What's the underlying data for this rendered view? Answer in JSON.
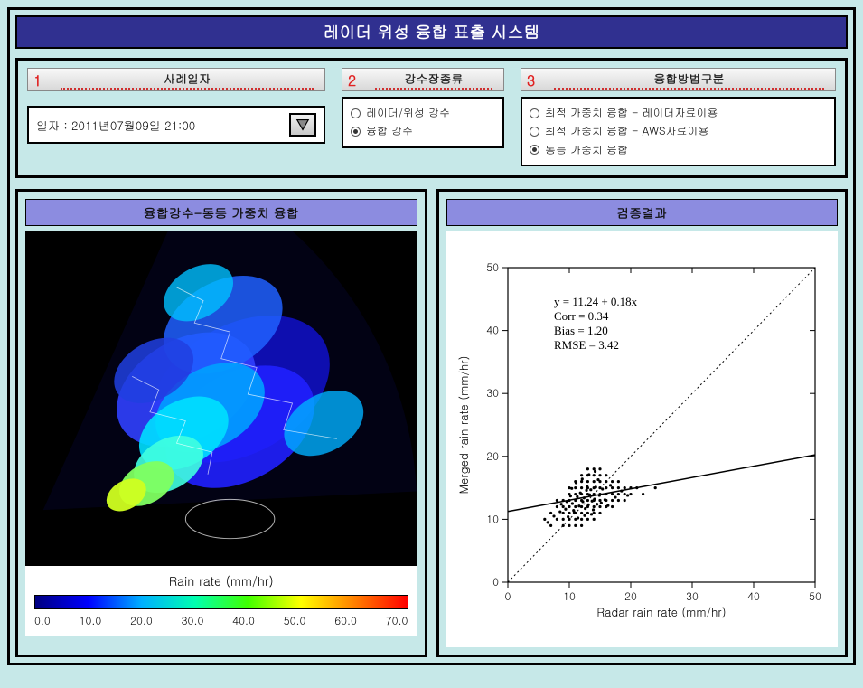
{
  "app": {
    "title": "레이더 위성 융합 표출 시스템"
  },
  "sections": {
    "date": {
      "num": "1",
      "title": "사례일자"
    },
    "type": {
      "num": "2",
      "title": "강수장종류"
    },
    "method": {
      "num": "3",
      "title": "융합방법구분"
    }
  },
  "date_field": {
    "label_prefix": "일자 :",
    "value": "2011년07월09일   21:00"
  },
  "type_radios": {
    "options": [
      {
        "label": "레이더/위성 강수",
        "selected": false
      },
      {
        "label": "융합 강수",
        "selected": true
      }
    ]
  },
  "method_radios": {
    "options": [
      {
        "label": "최적 가중치 융합 - 레이더자료이용",
        "selected": false
      },
      {
        "label": "최적 가중치 융합 - AWS자료이용",
        "selected": false
      },
      {
        "label": "동등 가중치 융합",
        "selected": true
      }
    ]
  },
  "left_panel": {
    "title": "융합강수-동등 가중치 융합",
    "colorbar": {
      "title": "Rain rate (mm/hr)",
      "ticks": [
        "0.0",
        "10.0",
        "20.0",
        "30.0",
        "40.0",
        "50.0",
        "60.0",
        "70.0"
      ],
      "stops": [
        "#000080",
        "#0000ff",
        "#00b0ff",
        "#00ffb0",
        "#40ff00",
        "#ffff00",
        "#ff8000",
        "#ff0000"
      ]
    },
    "map_background": "#000000"
  },
  "right_panel": {
    "title": "검증결과",
    "scatter": {
      "type": "scatter",
      "xlabel": "Radar rain rate (mm/hr)",
      "ylabel": "Merged rain rate (mm/hr)",
      "label_fontsize": 13,
      "xlim": [
        0,
        50
      ],
      "ylim": [
        0,
        50
      ],
      "xticks": [
        0,
        10,
        20,
        30,
        40,
        50
      ],
      "yticks": [
        0,
        10,
        20,
        30,
        40,
        50
      ],
      "background_color": "#ffffff",
      "axis_color": "#000000",
      "point_color": "#000000",
      "point_size": 1.6,
      "identity_line": {
        "style": "dotted",
        "color": "#000000"
      },
      "fit_line": {
        "intercept": 11.24,
        "slope": 0.18,
        "color": "#000000",
        "width": 1.5
      },
      "stats_text": [
        "y =  11.24 +  0.18x",
        "Corr =  0.34",
        "Bias =  1.20",
        "RMSE =  3.42"
      ],
      "stats_pos_frac": {
        "x": 0.15,
        "y": 0.88
      },
      "points": [
        [
          6,
          10
        ],
        [
          7,
          11
        ],
        [
          7,
          9
        ],
        [
          8,
          12
        ],
        [
          8,
          10
        ],
        [
          8,
          13
        ],
        [
          9,
          11
        ],
        [
          9,
          12
        ],
        [
          9,
          10
        ],
        [
          9,
          13
        ],
        [
          9,
          9
        ],
        [
          10,
          12
        ],
        [
          10,
          11
        ],
        [
          10,
          13
        ],
        [
          10,
          10
        ],
        [
          10,
          14
        ],
        [
          10,
          9
        ],
        [
          10,
          15
        ],
        [
          11,
          12
        ],
        [
          11,
          13
        ],
        [
          11,
          11
        ],
        [
          11,
          14
        ],
        [
          11,
          10
        ],
        [
          11,
          15
        ],
        [
          11,
          16
        ],
        [
          11,
          9
        ],
        [
          12,
          13
        ],
        [
          12,
          12
        ],
        [
          12,
          14
        ],
        [
          12,
          11
        ],
        [
          12,
          15
        ],
        [
          12,
          10
        ],
        [
          12,
          16
        ],
        [
          12,
          17
        ],
        [
          12,
          9
        ],
        [
          13,
          13
        ],
        [
          13,
          14
        ],
        [
          13,
          12
        ],
        [
          13,
          15
        ],
        [
          13,
          11
        ],
        [
          13,
          16
        ],
        [
          13,
          10
        ],
        [
          13,
          17
        ],
        [
          13,
          18
        ],
        [
          14,
          13
        ],
        [
          14,
          14
        ],
        [
          14,
          12
        ],
        [
          14,
          15
        ],
        [
          14,
          16
        ],
        [
          14,
          11
        ],
        [
          14,
          17
        ],
        [
          14,
          10
        ],
        [
          14,
          18
        ],
        [
          15,
          13
        ],
        [
          15,
          14
        ],
        [
          15,
          15
        ],
        [
          15,
          12
        ],
        [
          15,
          16
        ],
        [
          15,
          11
        ],
        [
          15,
          17
        ],
        [
          15,
          18
        ],
        [
          16,
          14
        ],
        [
          16,
          13
        ],
        [
          16,
          15
        ],
        [
          16,
          12
        ],
        [
          16,
          16
        ],
        [
          16,
          17
        ],
        [
          17,
          14
        ],
        [
          17,
          15
        ],
        [
          17,
          13
        ],
        [
          17,
          16
        ],
        [
          17,
          12
        ],
        [
          18,
          14
        ],
        [
          18,
          15
        ],
        [
          18,
          13
        ],
        [
          18,
          16
        ],
        [
          19,
          14
        ],
        [
          19,
          15
        ],
        [
          19,
          13
        ],
        [
          20,
          14
        ],
        [
          20,
          15
        ],
        [
          21,
          15
        ],
        [
          22,
          14
        ],
        [
          24,
          15
        ],
        [
          10.5,
          12.5
        ],
        [
          10.7,
          11.4
        ],
        [
          11.3,
          13.6
        ],
        [
          11.6,
          12.1
        ],
        [
          11.8,
          14.2
        ],
        [
          12.2,
          12.8
        ],
        [
          12.4,
          13.4
        ],
        [
          12.6,
          11.7
        ],
        [
          12.8,
          14.6
        ],
        [
          12.9,
          15.2
        ],
        [
          13.1,
          12.3
        ],
        [
          13.3,
          13.9
        ],
        [
          13.5,
          14.7
        ],
        [
          13.7,
          12.9
        ],
        [
          13.9,
          11.5
        ],
        [
          14.1,
          13.2
        ],
        [
          14.3,
          15.1
        ],
        [
          14.5,
          12.4
        ],
        [
          14.7,
          16.3
        ],
        [
          14.9,
          13.8
        ],
        [
          9.4,
          11.6
        ],
        [
          9.6,
          12.8
        ],
        [
          9.8,
          10.4
        ],
        [
          8.5,
          11.2
        ],
        [
          8.7,
          12.4
        ],
        [
          15.2,
          12.6
        ],
        [
          15.4,
          14.8
        ],
        [
          15.8,
          13.1
        ],
        [
          16.3,
          12.2
        ],
        [
          16.7,
          15.4
        ],
        [
          10.2,
          13.7
        ],
        [
          10.4,
          14.9
        ],
        [
          10.8,
          11.1
        ],
        [
          11.1,
          15.8
        ],
        [
          11.4,
          10.2
        ],
        [
          12.1,
          16.4
        ],
        [
          12.5,
          10.6
        ],
        [
          13.2,
          17.1
        ],
        [
          13.6,
          10.8
        ],
        [
          14.2,
          17.6
        ],
        [
          7.5,
          10.5
        ],
        [
          6.5,
          9.5
        ],
        [
          17.5,
          13.5
        ],
        [
          18.5,
          14.5
        ],
        [
          19.5,
          13.8
        ]
      ]
    }
  }
}
